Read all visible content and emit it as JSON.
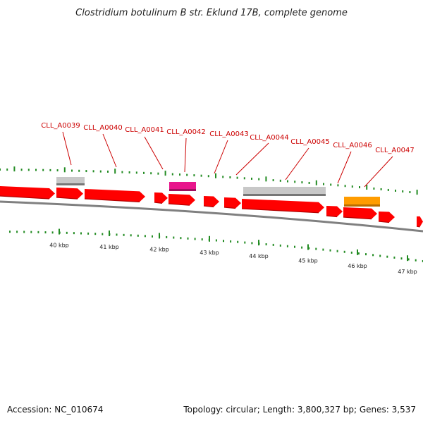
{
  "title": "Clostridium botulinum B str. Eklund 17B, complete genome",
  "accession_line": "Accession: NC_010674",
  "summary_line": "Topology: circular; Length: 3,800,327 bp; Genes: 3,537",
  "colors": {
    "gene_forward": "#ff0000",
    "rna_grey": "#c8c8c8",
    "feature_magenta": "#e8168c",
    "feature_orange": "#ff9c00",
    "label_red": "#cc0000",
    "tick_green": "#228b22",
    "backbone": "#808080"
  },
  "gene_labels": [
    {
      "name": "CLL_A0039"
    },
    {
      "name": "CLL_A0040"
    },
    {
      "name": "CLL_A0041"
    },
    {
      "name": "CLL_A0042"
    },
    {
      "name": "CLL_A0043"
    },
    {
      "name": "CLL_A0044"
    },
    {
      "name": "CLL_A0045"
    },
    {
      "name": "CLL_A0046"
    },
    {
      "name": "CLL_A0047"
    }
  ],
  "kbp_labels": [
    "40 kbp",
    "41 kbp",
    "42 kbp",
    "43 kbp",
    "44 kbp",
    "45 kbp",
    "46 kbp",
    "47 kbp"
  ],
  "icons": [
    "gene-arrow",
    "feature-box",
    "tick-mark",
    "label-leader-line"
  ]
}
